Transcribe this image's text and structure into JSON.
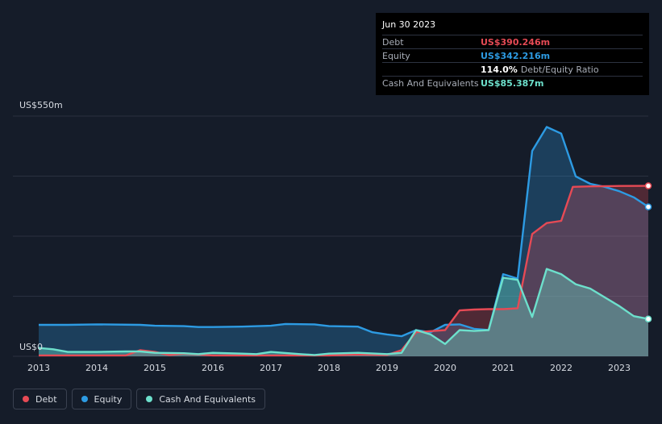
{
  "tooltip": {
    "date": "Jun 30 2023",
    "debt_label": "Debt",
    "debt_value": "US$390.246m",
    "equity_label": "Equity",
    "equity_value": "US$342.216m",
    "ratio_value": "114.0%",
    "ratio_label": "Debt/Equity Ratio",
    "cash_label": "Cash And Equivalents",
    "cash_value": "US$85.387m"
  },
  "legend": {
    "debt": "Debt",
    "equity": "Equity",
    "cash": "Cash And Equivalents"
  },
  "colors": {
    "debt": "#e64a55",
    "equity": "#2d9be3",
    "cash": "#6de0cc",
    "background": "#151c29"
  },
  "chart_data": {
    "type": "area",
    "ylabel_top": "US$550m",
    "ylabel_bottom": "US$0",
    "ylim": [
      0,
      550
    ],
    "xlim": [
      2013.0,
      2023.5
    ],
    "x_ticks": [
      "2013",
      "2014",
      "2015",
      "2016",
      "2017",
      "2018",
      "2019",
      "2020",
      "2021",
      "2022",
      "2023"
    ],
    "grid": true,
    "legend_position": "bottom-left",
    "series": [
      {
        "name": "Debt",
        "color": "#e64a55",
        "points": [
          [
            2013.0,
            2
          ],
          [
            2014.0,
            2
          ],
          [
            2014.5,
            2
          ],
          [
            2014.75,
            14
          ],
          [
            2015.0,
            10
          ],
          [
            2015.25,
            3
          ],
          [
            2015.5,
            6
          ],
          [
            2016.0,
            2
          ],
          [
            2017.0,
            2
          ],
          [
            2017.5,
            2
          ],
          [
            2018.0,
            2
          ],
          [
            2018.5,
            4
          ],
          [
            2019.0,
            3
          ],
          [
            2019.25,
            14
          ],
          [
            2019.5,
            55
          ],
          [
            2020.0,
            60
          ],
          [
            2020.25,
            105
          ],
          [
            2020.5,
            107
          ],
          [
            2020.75,
            108
          ],
          [
            2021.0,
            108
          ],
          [
            2021.25,
            110
          ],
          [
            2021.5,
            280
          ],
          [
            2021.75,
            305
          ],
          [
            2022.0,
            310
          ],
          [
            2022.2,
            388
          ],
          [
            2022.5,
            389
          ],
          [
            2023.0,
            390
          ],
          [
            2023.5,
            390.246
          ]
        ]
      },
      {
        "name": "Equity",
        "color": "#2d9be3",
        "points": [
          [
            2013.0,
            72
          ],
          [
            2013.5,
            72
          ],
          [
            2014.0,
            73
          ],
          [
            2014.75,
            72
          ],
          [
            2015.0,
            70
          ],
          [
            2015.5,
            69
          ],
          [
            2015.75,
            67
          ],
          [
            2016.0,
            67
          ],
          [
            2016.5,
            68
          ],
          [
            2017.0,
            70
          ],
          [
            2017.25,
            74
          ],
          [
            2017.75,
            73
          ],
          [
            2018.0,
            69
          ],
          [
            2018.5,
            68
          ],
          [
            2018.75,
            55
          ],
          [
            2019.0,
            50
          ],
          [
            2019.25,
            46
          ],
          [
            2019.5,
            60
          ],
          [
            2019.75,
            55
          ],
          [
            2020.0,
            72
          ],
          [
            2020.25,
            73
          ],
          [
            2020.5,
            63
          ],
          [
            2020.75,
            60
          ],
          [
            2021.0,
            188
          ],
          [
            2021.25,
            178
          ],
          [
            2021.5,
            470
          ],
          [
            2021.75,
            525
          ],
          [
            2022.0,
            510
          ],
          [
            2022.25,
            412
          ],
          [
            2022.5,
            395
          ],
          [
            2022.75,
            388
          ],
          [
            2023.0,
            378
          ],
          [
            2023.25,
            364
          ],
          [
            2023.5,
            342.216
          ]
        ]
      },
      {
        "name": "Cash And Equivalents",
        "color": "#6de0cc",
        "points": [
          [
            2013.0,
            19
          ],
          [
            2013.25,
            16
          ],
          [
            2013.5,
            10
          ],
          [
            2014.0,
            10
          ],
          [
            2014.5,
            11
          ],
          [
            2014.75,
            11
          ],
          [
            2015.0,
            8
          ],
          [
            2015.5,
            7
          ],
          [
            2015.75,
            5
          ],
          [
            2016.0,
            8
          ],
          [
            2016.5,
            6
          ],
          [
            2016.75,
            5
          ],
          [
            2017.0,
            10
          ],
          [
            2017.5,
            5
          ],
          [
            2017.75,
            3
          ],
          [
            2018.0,
            6
          ],
          [
            2018.5,
            8
          ],
          [
            2019.0,
            5
          ],
          [
            2019.25,
            8
          ],
          [
            2019.5,
            60
          ],
          [
            2019.75,
            50
          ],
          [
            2020.0,
            28
          ],
          [
            2020.25,
            60
          ],
          [
            2020.5,
            58
          ],
          [
            2020.75,
            60
          ],
          [
            2021.0,
            180
          ],
          [
            2021.25,
            175
          ],
          [
            2021.5,
            90
          ],
          [
            2021.75,
            200
          ],
          [
            2022.0,
            188
          ],
          [
            2022.25,
            165
          ],
          [
            2022.5,
            155
          ],
          [
            2022.75,
            135
          ],
          [
            2023.0,
            115
          ],
          [
            2023.25,
            92
          ],
          [
            2023.5,
            85.387
          ]
        ]
      }
    ]
  }
}
